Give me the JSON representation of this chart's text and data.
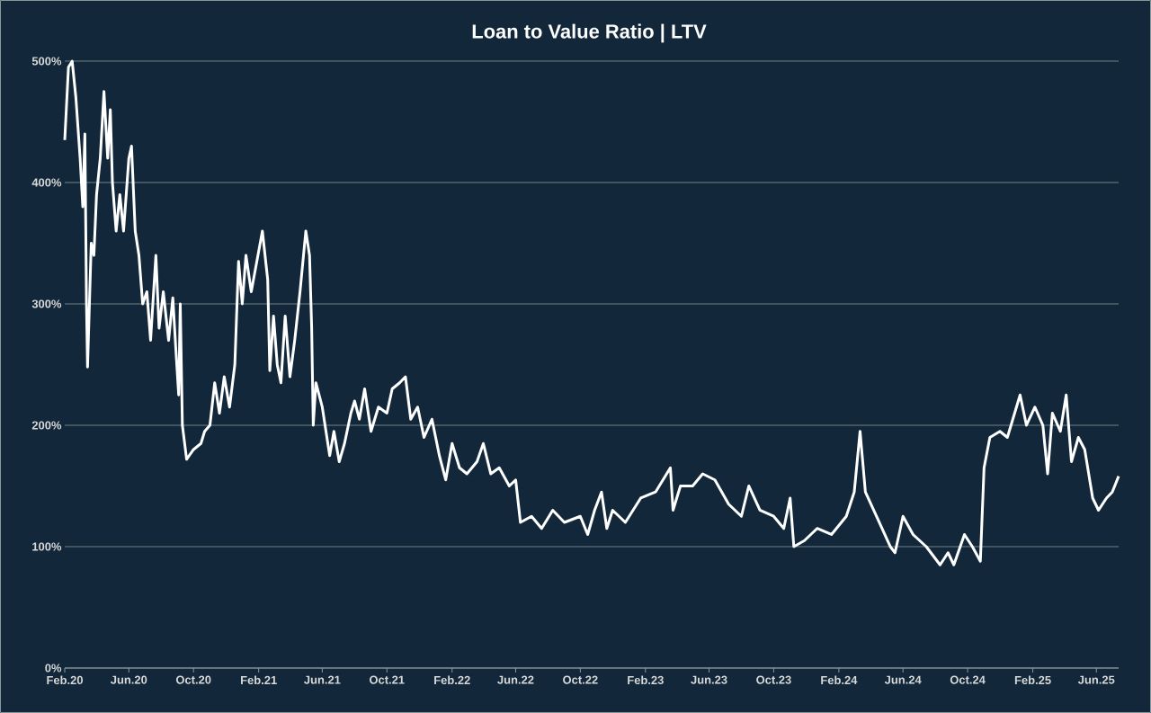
{
  "chart_data": {
    "type": "line",
    "title": "Loan to Value Ratio  |  LTV",
    "x": [
      "2020-02-01",
      "2020-02-08",
      "2020-02-15",
      "2020-02-22",
      "2020-03-01",
      "2020-03-06",
      "2020-03-10",
      "2020-03-13",
      "2020-03-15",
      "2020-03-22",
      "2020-03-27",
      "2020-04-01",
      "2020-04-08",
      "2020-04-15",
      "2020-04-22",
      "2020-04-27",
      "2020-05-01",
      "2020-05-08",
      "2020-05-15",
      "2020-05-22",
      "2020-06-01",
      "2020-06-06",
      "2020-06-13",
      "2020-06-20",
      "2020-06-27",
      "2020-07-05",
      "2020-07-12",
      "2020-07-22",
      "2020-07-28",
      "2020-08-05",
      "2020-08-15",
      "2020-08-23",
      "2020-08-29",
      "2020-09-03",
      "2020-09-06",
      "2020-09-10",
      "2020-09-18",
      "2020-10-01",
      "2020-10-15",
      "2020-10-22",
      "2020-11-01",
      "2020-11-10",
      "2020-11-19",
      "2020-11-28",
      "2020-12-08",
      "2020-12-18",
      "2020-12-25",
      "2021-01-01",
      "2021-01-08",
      "2021-01-18",
      "2021-02-08",
      "2021-02-18",
      "2021-02-22",
      "2021-03-01",
      "2021-03-08",
      "2021-03-15",
      "2021-03-23",
      "2021-04-01",
      "2021-04-10",
      "2021-04-20",
      "2021-05-01",
      "2021-05-08",
      "2021-05-12",
      "2021-05-15",
      "2021-05-20",
      "2021-06-01",
      "2021-06-15",
      "2021-06-23",
      "2021-07-03",
      "2021-07-13",
      "2021-07-25",
      "2021-08-01",
      "2021-08-10",
      "2021-08-20",
      "2021-09-01",
      "2021-09-15",
      "2021-10-01",
      "2021-10-11",
      "2021-10-25",
      "2021-11-05",
      "2021-11-15",
      "2021-11-28",
      "2021-12-10",
      "2021-12-25",
      "2022-01-08",
      "2022-01-20",
      "2022-02-01",
      "2022-02-15",
      "2022-03-01",
      "2022-03-20",
      "2022-04-01",
      "2022-04-15",
      "2022-05-01",
      "2022-05-20",
      "2022-06-01",
      "2022-06-10",
      "2022-07-01",
      "2022-07-20",
      "2022-08-10",
      "2022-09-01",
      "2022-10-01",
      "2022-10-15",
      "2022-10-28",
      "2022-11-10",
      "2022-11-20",
      "2022-12-01",
      "2022-12-25",
      "2023-01-23",
      "2023-02-20",
      "2023-03-20",
      "2023-03-25",
      "2023-04-08",
      "2023-05-01",
      "2023-05-20",
      "2023-06-12",
      "2023-07-08",
      "2023-08-01",
      "2023-08-15",
      "2023-09-05",
      "2023-10-01",
      "2023-10-20",
      "2023-11-01",
      "2023-11-08",
      "2023-11-28",
      "2023-12-22",
      "2024-01-18",
      "2024-02-15",
      "2024-03-01",
      "2024-03-12",
      "2024-03-22",
      "2024-04-12",
      "2024-05-08",
      "2024-05-17",
      "2024-06-01",
      "2024-06-20",
      "2024-07-15",
      "2024-08-10",
      "2024-08-25",
      "2024-09-05",
      "2024-09-25",
      "2024-10-10",
      "2024-10-25",
      "2024-11-01",
      "2024-11-12",
      "2024-12-01",
      "2024-12-15",
      "2025-01-08",
      "2025-01-20",
      "2025-02-05",
      "2025-02-20",
      "2025-03-01",
      "2025-03-10",
      "2025-03-25",
      "2025-04-05",
      "2025-04-15",
      "2025-04-28",
      "2025-05-10",
      "2025-05-25",
      "2025-06-05",
      "2025-06-20",
      "2025-07-01",
      "2025-07-13"
    ],
    "series": [
      {
        "color": "#ffffff",
        "values": [
          435,
          495,
          500,
          470,
          420,
          380,
          440,
          300,
          248,
          350,
          340,
          390,
          420,
          475,
          420,
          460,
          400,
          360,
          390,
          360,
          420,
          430,
          360,
          340,
          300,
          310,
          270,
          340,
          280,
          310,
          270,
          305,
          260,
          225,
          300,
          200,
          172,
          180,
          185,
          195,
          200,
          235,
          210,
          240,
          215,
          250,
          335,
          300,
          340,
          310,
          360,
          320,
          245,
          290,
          250,
          235,
          290,
          240,
          270,
          310,
          360,
          340,
          280,
          200,
          235,
          215,
          175,
          195,
          170,
          185,
          210,
          220,
          205,
          230,
          195,
          215,
          210,
          230,
          235,
          240,
          205,
          215,
          190,
          205,
          175,
          155,
          185,
          165,
          160,
          170,
          185,
          160,
          165,
          150,
          155,
          120,
          125,
          115,
          130,
          120,
          125,
          110,
          130,
          145,
          115,
          130,
          120,
          140,
          145,
          165,
          130,
          150,
          150,
          160,
          155,
          135,
          125,
          150,
          130,
          125,
          115,
          140,
          100,
          105,
          115,
          110,
          125,
          145,
          195,
          145,
          125,
          100,
          95,
          125,
          110,
          100,
          85,
          95,
          85,
          110,
          100,
          88,
          165,
          190,
          195,
          190,
          225,
          200,
          215,
          200,
          160,
          210,
          195,
          225,
          170,
          190,
          180,
          140,
          130,
          140,
          145,
          158
        ]
      }
    ],
    "xlim": [
      "2020-02-01",
      "2025-07-13"
    ],
    "xticks": [
      {
        "value": "2020-02-01",
        "label": "Feb.20"
      },
      {
        "value": "2020-06-01",
        "label": "Jun.20"
      },
      {
        "value": "2020-10-01",
        "label": "Oct.20"
      },
      {
        "value": "2021-02-01",
        "label": "Feb.21"
      },
      {
        "value": "2021-06-01",
        "label": "Jun.21"
      },
      {
        "value": "2021-10-01",
        "label": "Oct.21"
      },
      {
        "value": "2022-02-01",
        "label": "Feb.22"
      },
      {
        "value": "2022-06-01",
        "label": "Jun.22"
      },
      {
        "value": "2022-10-01",
        "label": "Oct.22"
      },
      {
        "value": "2023-02-01",
        "label": "Feb.23"
      },
      {
        "value": "2023-06-01",
        "label": "Jun.23"
      },
      {
        "value": "2023-10-01",
        "label": "Oct.23"
      },
      {
        "value": "2024-02-01",
        "label": "Feb.24"
      },
      {
        "value": "2024-06-01",
        "label": "Jun.24"
      },
      {
        "value": "2024-10-01",
        "label": "Oct.24"
      },
      {
        "value": "2025-02-01",
        "label": "Feb.25"
      },
      {
        "value": "2025-06-01",
        "label": "Jun.25"
      }
    ],
    "ylim": [
      0,
      500
    ],
    "yticks": [
      {
        "value": 0,
        "label": "0%"
      },
      {
        "value": 100,
        "label": "100%"
      },
      {
        "value": 200,
        "label": "200%"
      },
      {
        "value": 300,
        "label": "300%"
      },
      {
        "value": 400,
        "label": "400%"
      },
      {
        "value": 500,
        "label": "500%"
      }
    ],
    "grid": "y"
  }
}
